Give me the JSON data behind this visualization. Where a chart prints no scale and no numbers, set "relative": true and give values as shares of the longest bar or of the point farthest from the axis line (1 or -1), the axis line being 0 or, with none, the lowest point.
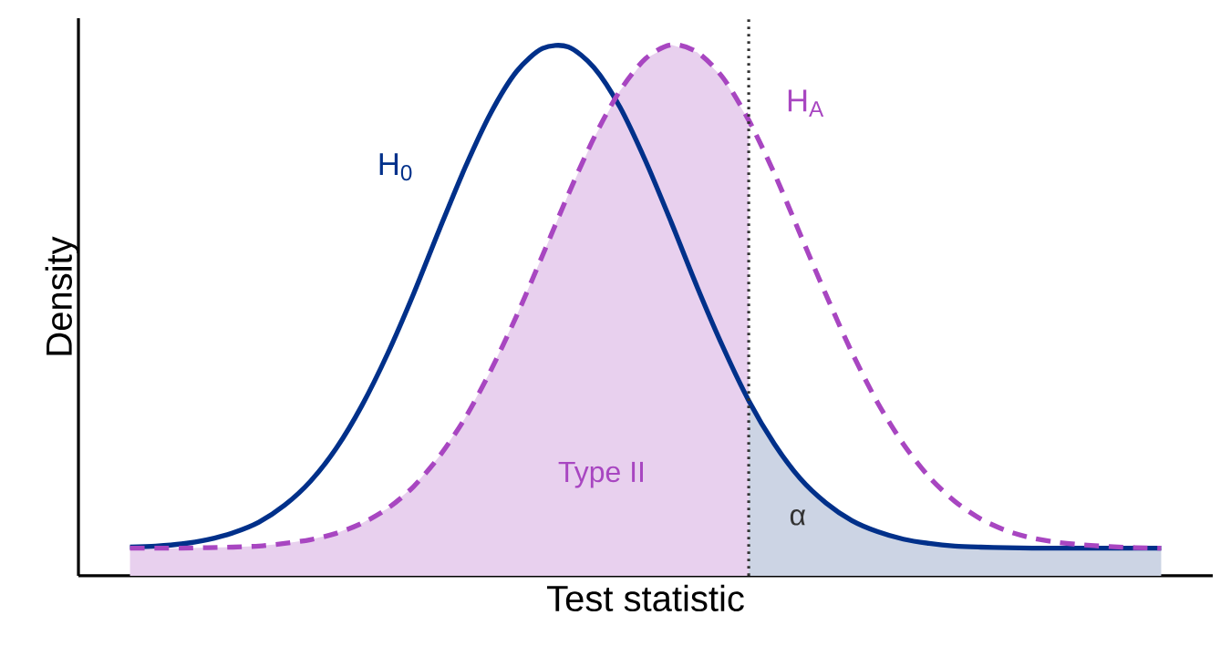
{
  "chart_data": {
    "type": "line",
    "relative": true,
    "xlabel": "Test statistic",
    "ylabel": "Density",
    "categories": [
      null,
      null,
      null,
      null,
      null,
      null,
      null,
      null,
      null,
      null,
      null,
      null,
      null,
      null,
      null,
      null,
      null,
      null,
      null,
      null,
      null,
      null,
      null,
      null,
      null,
      null,
      null,
      null,
      null,
      null,
      null,
      null,
      null,
      null,
      null,
      null,
      null,
      null,
      null,
      null,
      null
    ],
    "series": [
      {
        "type": "area",
        "color": "#e8d0ee",
        "values": [
          0.052,
          0.052,
          0.052,
          0.053,
          0.054,
          0.056,
          0.061,
          0.068,
          0.08,
          0.099,
          0.127,
          0.168,
          0.225,
          0.297,
          0.387,
          0.49,
          0.603,
          0.718,
          0.825,
          0.913,
          0.974,
          1.0,
          0.986,
          0.938,
          0.858,
          null,
          null,
          null,
          null,
          null,
          null,
          null,
          null,
          null,
          null,
          null,
          null,
          null,
          null,
          null,
          null
        ]
      },
      {
        "type": "area",
        "color": "#ccd4e4",
        "values": [
          null,
          null,
          null,
          null,
          null,
          null,
          null,
          null,
          null,
          null,
          null,
          null,
          null,
          null,
          null,
          null,
          null,
          null,
          null,
          null,
          null,
          null,
          null,
          null,
          0.33,
          0.248,
          0.183,
          0.137,
          0.104,
          0.083,
          0.069,
          0.061,
          0.056,
          0.054,
          0.053,
          0.052,
          0.052,
          0.052,
          0.052,
          0.052,
          0.052
        ]
      },
      {
        "name": "H$_{0}$",
        "color": "#00308a",
        "line_style": "solid",
        "values": [
          0.054,
          0.056,
          0.06,
          0.068,
          0.081,
          0.101,
          0.133,
          0.178,
          0.24,
          0.321,
          0.419,
          0.531,
          0.652,
          0.769,
          0.872,
          0.95,
          0.993,
          0.996,
          0.957,
          0.883,
          0.781,
          0.665,
          0.544,
          0.431,
          0.33,
          0.248,
          0.183,
          0.137,
          0.104,
          0.083,
          0.069,
          0.061,
          0.056,
          0.054,
          0.053,
          0.052,
          0.052,
          0.052,
          0.052,
          0.052,
          0.052
        ]
      },
      {
        "name": "H$_{A}$",
        "color": "#a846c1",
        "line_style": "dashed",
        "values": [
          0.052,
          0.052,
          0.052,
          0.053,
          0.054,
          0.056,
          0.061,
          0.068,
          0.08,
          0.099,
          0.127,
          0.168,
          0.225,
          0.297,
          0.387,
          0.49,
          0.603,
          0.718,
          0.825,
          0.913,
          0.974,
          1.0,
          0.986,
          0.938,
          0.858,
          0.757,
          0.643,
          0.529,
          0.421,
          0.326,
          0.248,
          0.186,
          0.14,
          0.107,
          0.085,
          0.071,
          0.063,
          0.058,
          0.055,
          0.053,
          0.052
        ]
      }
    ],
    "annotations": [
      "Type II",
      "α"
    ],
    "marker": "none"
  }
}
